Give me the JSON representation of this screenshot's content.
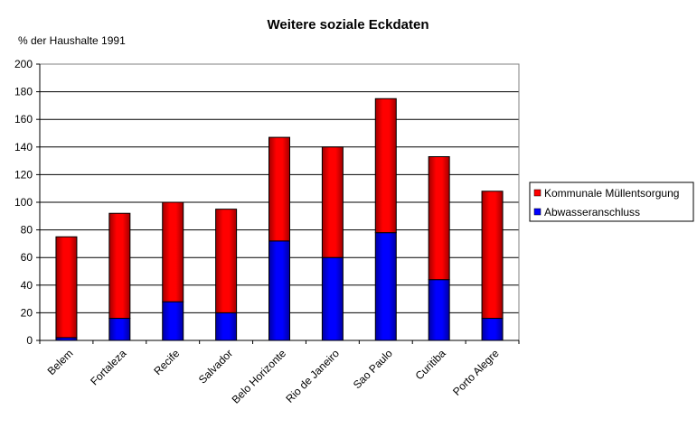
{
  "chart_data": {
    "type": "bar",
    "stacked": true,
    "title": "Weitere soziale Eckdaten",
    "ylabel": "% der Haushalte 1991",
    "xlabel": "",
    "ylim": [
      0,
      200
    ],
    "yticks": [
      0,
      20,
      40,
      60,
      80,
      100,
      120,
      140,
      160,
      180,
      200
    ],
    "grid": true,
    "legend_position": "right",
    "categories": [
      "Belem",
      "Fortaleza",
      "Recife",
      "Salvador",
      "Belo Horizonte",
      "Rio de Janeiro",
      "Sao Paulo",
      "Curitiba",
      "Porto Alegre"
    ],
    "series": [
      {
        "name": "Abwasseranschluss",
        "color": "#0000ff",
        "values": [
          2,
          16,
          28,
          20,
          72,
          60,
          78,
          44,
          16
        ]
      },
      {
        "name": "Kommunale Müllentsorgung",
        "color": "#ff0000",
        "values": [
          73,
          76,
          72,
          75,
          75,
          80,
          97,
          89,
          92
        ]
      }
    ],
    "legend_order": [
      1,
      0
    ]
  }
}
